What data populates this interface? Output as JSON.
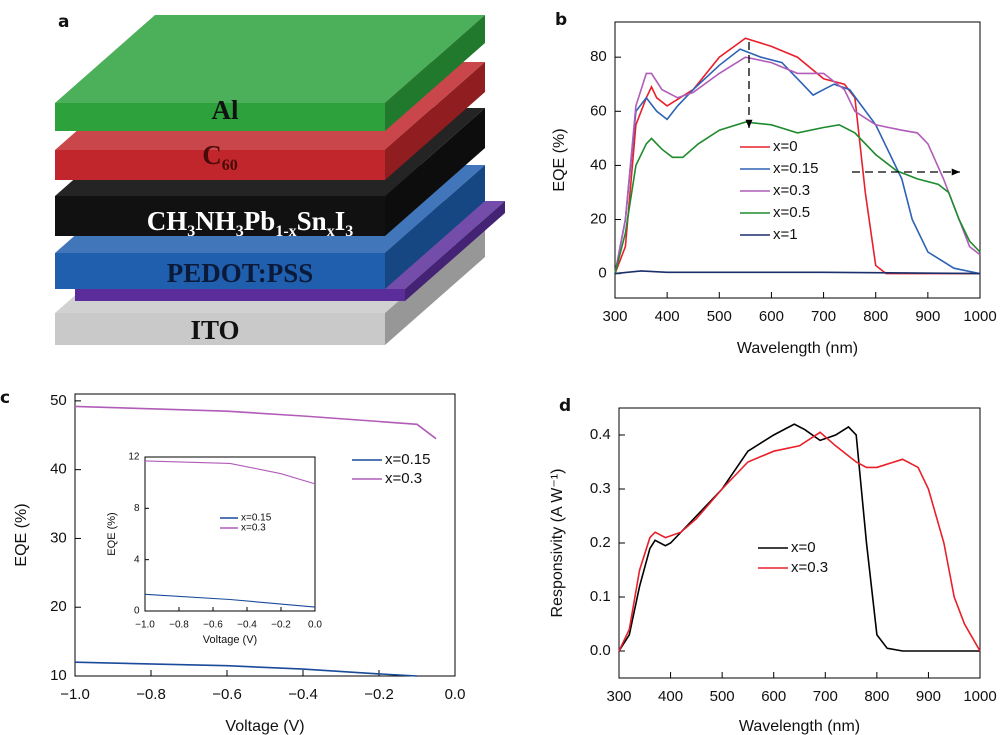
{
  "diagram": {
    "panel_label": "a",
    "layers": [
      {
        "label": [
          "Al"
        ],
        "color": "#2ca13c",
        "label_color": "#111111"
      },
      {
        "label": [
          "C",
          "60"
        ],
        "color": "#c0262b",
        "label_color": "#4a0a0a"
      },
      {
        "label": [
          "CH",
          "3",
          "NH",
          "3",
          "Pb",
          "1-x",
          "Sn",
          "x",
          "I",
          "3"
        ],
        "color": "#111111",
        "label_color": "#ffffff"
      },
      {
        "label": [
          "PEDOT:PSS"
        ],
        "color": "#1f5fae",
        "label_color": "#0c1a3a"
      },
      {
        "color": "#5b2d9b"
      },
      {
        "label": [
          "ITO"
        ],
        "color": "#c9c9c9",
        "label_color": "#111111"
      }
    ]
  },
  "chart_data": [
    {
      "type": "line",
      "panel_label": "b",
      "x_label": "Wavelength (nm)",
      "y_label": "EQE (%)",
      "xlim": [
        300,
        1000
      ],
      "xticks": [
        300,
        400,
        500,
        600,
        700,
        800,
        900,
        1000
      ],
      "ylim": [
        -9,
        93
      ],
      "yticks": [
        0,
        20,
        40,
        60,
        80
      ],
      "series": [
        {
          "name": "x=0",
          "color": "#e8202a",
          "x": [
            300,
            320,
            340,
            360,
            370,
            380,
            400,
            450,
            500,
            550,
            600,
            650,
            700,
            740,
            760,
            780,
            800,
            820,
            900,
            1000
          ],
          "values": [
            0,
            10,
            55,
            65,
            69,
            65,
            62,
            68,
            80,
            87,
            84,
            80,
            72,
            70,
            65,
            30,
            3,
            0,
            0,
            0
          ]
        },
        {
          "name": "x=0.15",
          "color": "#2d62b5",
          "x": [
            300,
            320,
            340,
            360,
            380,
            400,
            420,
            450,
            500,
            540,
            580,
            620,
            660,
            680,
            700,
            720,
            750,
            800,
            850,
            870,
            900,
            950,
            1000
          ],
          "values": [
            0,
            20,
            60,
            65,
            60,
            57,
            62,
            68,
            77,
            83,
            80,
            78,
            70,
            66,
            68,
            70,
            68,
            55,
            35,
            20,
            8,
            2,
            0
          ]
        },
        {
          "name": "x=0.3",
          "color": "#b05cb8",
          "x": [
            300,
            320,
            340,
            360,
            370,
            390,
            420,
            450,
            500,
            550,
            600,
            650,
            700,
            740,
            760,
            800,
            850,
            880,
            900,
            930,
            960,
            980,
            1000
          ],
          "values": [
            0,
            20,
            62,
            74,
            74,
            68,
            65,
            67,
            74,
            80,
            78,
            74,
            74,
            68,
            60,
            55,
            53,
            52,
            48,
            35,
            20,
            10,
            7
          ]
        },
        {
          "name": "x=0.5",
          "color": "#1f8a2e",
          "x": [
            300,
            320,
            340,
            360,
            370,
            390,
            410,
            430,
            460,
            500,
            550,
            600,
            650,
            700,
            730,
            760,
            800,
            840,
            880,
            920,
            940,
            960,
            980,
            1000
          ],
          "values": [
            0,
            15,
            40,
            48,
            50,
            46,
            43,
            43,
            48,
            53,
            56,
            55,
            52,
            54,
            55,
            52,
            44,
            38,
            35,
            33,
            30,
            20,
            12,
            8
          ]
        },
        {
          "name": "x=1",
          "color": "#1a2f6b",
          "x": [
            300,
            350,
            400,
            500,
            700,
            1000
          ],
          "values": [
            0,
            1,
            0.5,
            0.5,
            0.5,
            0
          ]
        }
      ]
    },
    {
      "type": "line",
      "panel_label": "c",
      "x_label": "Voltage (V)",
      "y_label": "EQE (%)",
      "xlim": [
        -1.0,
        0.0
      ],
      "xticks": [
        {
          "value": -1.0,
          "label": "−1.0"
        },
        {
          "value": -0.8,
          "label": "−0.8"
        },
        {
          "value": -0.6,
          "label": "−0.6"
        },
        {
          "value": -0.4,
          "label": "−0.4"
        },
        {
          "value": -0.2,
          "label": "−0.2"
        },
        {
          "value": 0,
          "label": "0.0"
        }
      ],
      "ylim": [
        10,
        51
      ],
      "yticks": [
        10,
        20,
        30,
        40,
        50
      ],
      "series": [
        {
          "name": "x=0.15",
          "color": "#1a4a9a",
          "x": [
            -1.0,
            -0.6,
            -0.4,
            -0.2,
            -0.1
          ],
          "values": [
            12,
            11.5,
            11,
            10.3,
            10
          ]
        },
        {
          "name": "x=0.3",
          "color": "#b05cb8",
          "x": [
            -1.0,
            -0.6,
            -0.4,
            -0.2,
            -0.1,
            -0.05
          ],
          "values": [
            49.2,
            48.5,
            47.8,
            47,
            46.6,
            44.5
          ]
        }
      ]
    },
    {
      "type": "line",
      "x_label": "Voltage (V)",
      "y_label": "EQE (%)",
      "xlim": [
        -1.0,
        0.0
      ],
      "xticks": [
        {
          "value": -1.0,
          "label": "−1.0"
        },
        {
          "value": -0.8,
          "label": "−0.8"
        },
        {
          "value": -0.6,
          "label": "−0.6"
        },
        {
          "value": -0.4,
          "label": "−0.4"
        },
        {
          "value": -0.2,
          "label": "−0.2"
        },
        {
          "value": 0,
          "label": "0.0"
        }
      ],
      "ylim": [
        0,
        12
      ],
      "yticks": [
        0,
        4,
        8,
        12
      ],
      "series": [
        {
          "name": "x=0.15",
          "color": "#1a4a9a",
          "x": [
            -1.0,
            -0.5,
            0
          ],
          "values": [
            1.3,
            0.9,
            0.3
          ]
        },
        {
          "name": "x=0.3",
          "color": "#b05cb8",
          "x": [
            -1.0,
            -0.5,
            -0.2,
            0
          ],
          "values": [
            11.7,
            11.5,
            10.7,
            9.9
          ]
        }
      ]
    },
    {
      "type": "line",
      "panel_label": "d",
      "x_label": "Wavelength (nm)",
      "y_label": "Responsivity (A W⁻¹)",
      "xlim": [
        300,
        1000
      ],
      "xticks": [
        300,
        400,
        500,
        600,
        700,
        800,
        900,
        1000
      ],
      "ylim": [
        -0.05,
        0.45
      ],
      "yticks": [
        {
          "value": 0,
          "label": "0.0"
        },
        0.1,
        0.2,
        0.3,
        0.4
      ],
      "series": [
        {
          "name": "x=0",
          "color": "#000000",
          "x": [
            300,
            320,
            340,
            360,
            370,
            390,
            400,
            450,
            500,
            550,
            600,
            640,
            660,
            690,
            720,
            745,
            760,
            780,
            800,
            820,
            850,
            1000
          ],
          "values": [
            0,
            0.03,
            0.12,
            0.19,
            0.205,
            0.195,
            0.2,
            0.25,
            0.3,
            0.37,
            0.4,
            0.42,
            0.41,
            0.39,
            0.4,
            0.415,
            0.4,
            0.2,
            0.03,
            0.005,
            0,
            0
          ]
        },
        {
          "name": "x=0.3",
          "color": "#e8202a",
          "x": [
            300,
            320,
            340,
            360,
            370,
            390,
            420,
            450,
            500,
            550,
            600,
            650,
            690,
            720,
            760,
            780,
            800,
            850,
            880,
            900,
            930,
            950,
            970,
            1000
          ],
          "values": [
            0,
            0.04,
            0.15,
            0.21,
            0.22,
            0.21,
            0.22,
            0.245,
            0.3,
            0.35,
            0.37,
            0.38,
            0.405,
            0.38,
            0.35,
            0.34,
            0.34,
            0.355,
            0.34,
            0.3,
            0.2,
            0.1,
            0.05,
            0
          ]
        }
      ]
    }
  ]
}
